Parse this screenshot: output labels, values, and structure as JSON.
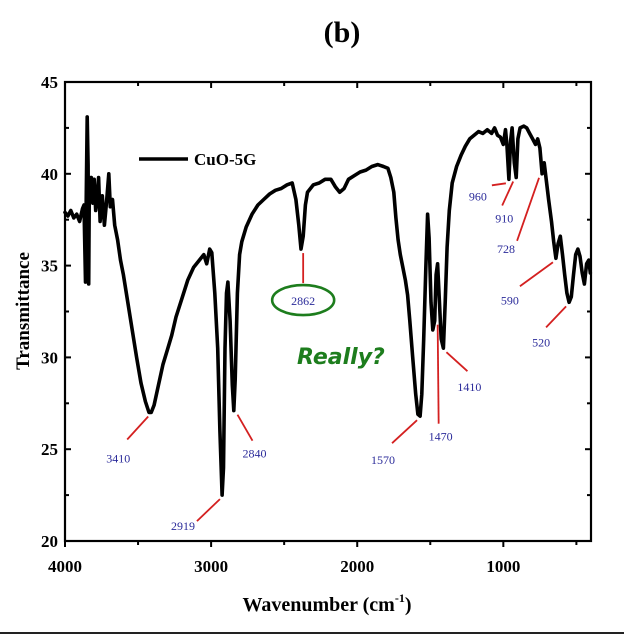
{
  "chart_data": {
    "type": "line",
    "title": "(b)",
    "xlabel": "Wavenumber (cm",
    "xlabel_sup": "-1",
    "xlabel_close": ")",
    "ylabel": "Transmittance",
    "xlim": [
      4000,
      400
    ],
    "ylim": [
      20,
      45
    ],
    "x_ticks": [
      4000,
      3000,
      2000,
      1000
    ],
    "x_tick_labels": [
      "4000",
      "3000",
      "2000",
      "1000"
    ],
    "y_ticks": [
      20,
      25,
      30,
      35,
      40,
      45
    ],
    "y_tick_labels": [
      "20",
      "25",
      "30",
      "35",
      "40",
      "45"
    ],
    "grid": false,
    "legend": {
      "position": "top-left",
      "entries": [
        "CuO-5G"
      ]
    },
    "series": [
      {
        "name": "CuO-5G",
        "color": "#000000",
        "points": [
          [
            4000,
            37.9
          ],
          [
            3980,
            37.7
          ],
          [
            3960,
            38.0
          ],
          [
            3940,
            37.6
          ],
          [
            3920,
            37.8
          ],
          [
            3900,
            37.4
          ],
          [
            3880,
            38.1
          ],
          [
            3870,
            38.3
          ],
          [
            3860,
            34.1
          ],
          [
            3855,
            38.5
          ],
          [
            3848,
            43.1
          ],
          [
            3842,
            40.5
          ],
          [
            3838,
            34.0
          ],
          [
            3834,
            39.2
          ],
          [
            3820,
            39.8
          ],
          [
            3810,
            38.4
          ],
          [
            3800,
            39.7
          ],
          [
            3790,
            38.0
          ],
          [
            3780,
            38.6
          ],
          [
            3770,
            39.8
          ],
          [
            3760,
            37.4
          ],
          [
            3745,
            38.8
          ],
          [
            3730,
            37.2
          ],
          [
            3715,
            38.5
          ],
          [
            3700,
            40.0
          ],
          [
            3690,
            38.2
          ],
          [
            3675,
            38.6
          ],
          [
            3660,
            37.2
          ],
          [
            3640,
            36.4
          ],
          [
            3620,
            35.3
          ],
          [
            3600,
            34.5
          ],
          [
            3570,
            33.0
          ],
          [
            3540,
            31.5
          ],
          [
            3510,
            30.0
          ],
          [
            3480,
            28.6
          ],
          [
            3450,
            27.6
          ],
          [
            3425,
            27.0
          ],
          [
            3410,
            27.0
          ],
          [
            3390,
            27.4
          ],
          [
            3360,
            28.5
          ],
          [
            3330,
            29.6
          ],
          [
            3300,
            30.4
          ],
          [
            3270,
            31.2
          ],
          [
            3240,
            32.2
          ],
          [
            3200,
            33.2
          ],
          [
            3160,
            34.2
          ],
          [
            3120,
            34.9
          ],
          [
            3080,
            35.3
          ],
          [
            3050,
            35.6
          ],
          [
            3030,
            35.1
          ],
          [
            3010,
            35.9
          ],
          [
            2995,
            35.7
          ],
          [
            2975,
            33.5
          ],
          [
            2955,
            30.5
          ],
          [
            2940,
            26.0
          ],
          [
            2925,
            22.5
          ],
          [
            2915,
            24.0
          ],
          [
            2905,
            30.5
          ],
          [
            2895,
            33.5
          ],
          [
            2885,
            34.1
          ],
          [
            2870,
            32.0
          ],
          [
            2855,
            28.5
          ],
          [
            2845,
            27.1
          ],
          [
            2835,
            28.8
          ],
          [
            2820,
            33.5
          ],
          [
            2805,
            35.6
          ],
          [
            2790,
            36.3
          ],
          [
            2760,
            37.1
          ],
          [
            2720,
            37.8
          ],
          [
            2680,
            38.3
          ],
          [
            2640,
            38.6
          ],
          [
            2600,
            38.9
          ],
          [
            2560,
            39.1
          ],
          [
            2520,
            39.2
          ],
          [
            2480,
            39.4
          ],
          [
            2445,
            39.5
          ],
          [
            2420,
            38.6
          ],
          [
            2400,
            37.2
          ],
          [
            2385,
            35.9
          ],
          [
            2370,
            36.6
          ],
          [
            2355,
            38.3
          ],
          [
            2340,
            39.0
          ],
          [
            2300,
            39.4
          ],
          [
            2260,
            39.5
          ],
          [
            2220,
            39.7
          ],
          [
            2180,
            39.7
          ],
          [
            2150,
            39.3
          ],
          [
            2120,
            39.0
          ],
          [
            2090,
            39.2
          ],
          [
            2060,
            39.7
          ],
          [
            2020,
            39.9
          ],
          [
            1980,
            40.1
          ],
          [
            1940,
            40.2
          ],
          [
            1900,
            40.4
          ],
          [
            1860,
            40.5
          ],
          [
            1820,
            40.4
          ],
          [
            1790,
            40.3
          ],
          [
            1770,
            39.8
          ],
          [
            1750,
            39.0
          ],
          [
            1735,
            37.6
          ],
          [
            1720,
            36.4
          ],
          [
            1705,
            35.6
          ],
          [
            1690,
            35.0
          ],
          [
            1670,
            34.2
          ],
          [
            1655,
            33.4
          ],
          [
            1640,
            32.0
          ],
          [
            1620,
            30.0
          ],
          [
            1600,
            28.0
          ],
          [
            1585,
            26.9
          ],
          [
            1570,
            26.8
          ],
          [
            1558,
            28.0
          ],
          [
            1545,
            31.0
          ],
          [
            1530,
            35.0
          ],
          [
            1518,
            37.8
          ],
          [
            1508,
            36.5
          ],
          [
            1495,
            33.0
          ],
          [
            1483,
            31.5
          ],
          [
            1470,
            32.0
          ],
          [
            1460,
            34.5
          ],
          [
            1450,
            35.1
          ],
          [
            1440,
            33.5
          ],
          [
            1425,
            31.0
          ],
          [
            1410,
            30.5
          ],
          [
            1398,
            33.0
          ],
          [
            1385,
            36.0
          ],
          [
            1370,
            38.0
          ],
          [
            1350,
            39.5
          ],
          [
            1320,
            40.4
          ],
          [
            1290,
            41.0
          ],
          [
            1260,
            41.5
          ],
          [
            1230,
            41.9
          ],
          [
            1200,
            42.1
          ],
          [
            1170,
            42.3
          ],
          [
            1140,
            42.2
          ],
          [
            1110,
            42.4
          ],
          [
            1080,
            42.2
          ],
          [
            1060,
            42.5
          ],
          [
            1040,
            42.1
          ],
          [
            1020,
            42.0
          ],
          [
            1000,
            41.6
          ],
          [
            985,
            42.4
          ],
          [
            975,
            41.5
          ],
          [
            962,
            39.7
          ],
          [
            950,
            41.8
          ],
          [
            940,
            42.5
          ],
          [
            925,
            40.6
          ],
          [
            912,
            39.8
          ],
          [
            900,
            41.9
          ],
          [
            885,
            42.5
          ],
          [
            860,
            42.6
          ],
          [
            840,
            42.5
          ],
          [
            820,
            42.2
          ],
          [
            800,
            41.9
          ],
          [
            780,
            41.6
          ],
          [
            765,
            41.9
          ],
          [
            750,
            41.4
          ],
          [
            735,
            40.0
          ],
          [
            720,
            40.6
          ],
          [
            705,
            39.6
          ],
          [
            690,
            38.6
          ],
          [
            670,
            37.4
          ],
          [
            655,
            36.3
          ],
          [
            640,
            35.4
          ],
          [
            625,
            36.2
          ],
          [
            610,
            36.6
          ],
          [
            595,
            35.6
          ],
          [
            580,
            34.5
          ],
          [
            565,
            33.5
          ],
          [
            550,
            33.0
          ],
          [
            535,
            33.3
          ],
          [
            520,
            34.5
          ],
          [
            505,
            35.6
          ],
          [
            490,
            35.9
          ],
          [
            475,
            35.5
          ],
          [
            460,
            34.6
          ],
          [
            445,
            34.0
          ],
          [
            430,
            35.1
          ],
          [
            415,
            35.3
          ],
          [
            405,
            34.6
          ]
        ]
      }
    ],
    "annotations": [
      {
        "label": "3410",
        "x": 3410,
        "y": 27.0,
        "color": "#2b2b9a"
      },
      {
        "label": "2919",
        "x": 2919,
        "y": 22.5,
        "color": "#2b2b9a"
      },
      {
        "label": "2840",
        "x": 2840,
        "y": 27.1,
        "color": "#2b2b9a"
      },
      {
        "label": "2862",
        "x": 2370,
        "y": 35.9,
        "color": "#2b2b9a",
        "circled": true
      },
      {
        "label": "1570",
        "x": 1570,
        "y": 26.8,
        "color": "#2b2b9a"
      },
      {
        "label": "1470",
        "x": 1470,
        "y": 32.0,
        "color": "#2b2b9a"
      },
      {
        "label": "1410",
        "x": 1410,
        "y": 30.5,
        "color": "#2b2b9a"
      },
      {
        "label": "960",
        "x": 962,
        "y": 39.7,
        "color": "#2b2b9a"
      },
      {
        "label": "910",
        "x": 912,
        "y": 39.8,
        "color": "#2b2b9a"
      },
      {
        "label": "728",
        "x": 735,
        "y": 40.0,
        "color": "#2b2b9a"
      },
      {
        "label": "590",
        "x": 640,
        "y": 35.4,
        "color": "#2b2b9a"
      },
      {
        "label": "520",
        "x": 550,
        "y": 33.0,
        "color": "#2b2b9a"
      }
    ],
    "comment": "Really?",
    "colors": {
      "line": "#000000",
      "leader": "#d42020",
      "annotation_text": "#2b2b9a",
      "comment": "#1d7d1d",
      "circle": "#1d7d1d"
    }
  }
}
